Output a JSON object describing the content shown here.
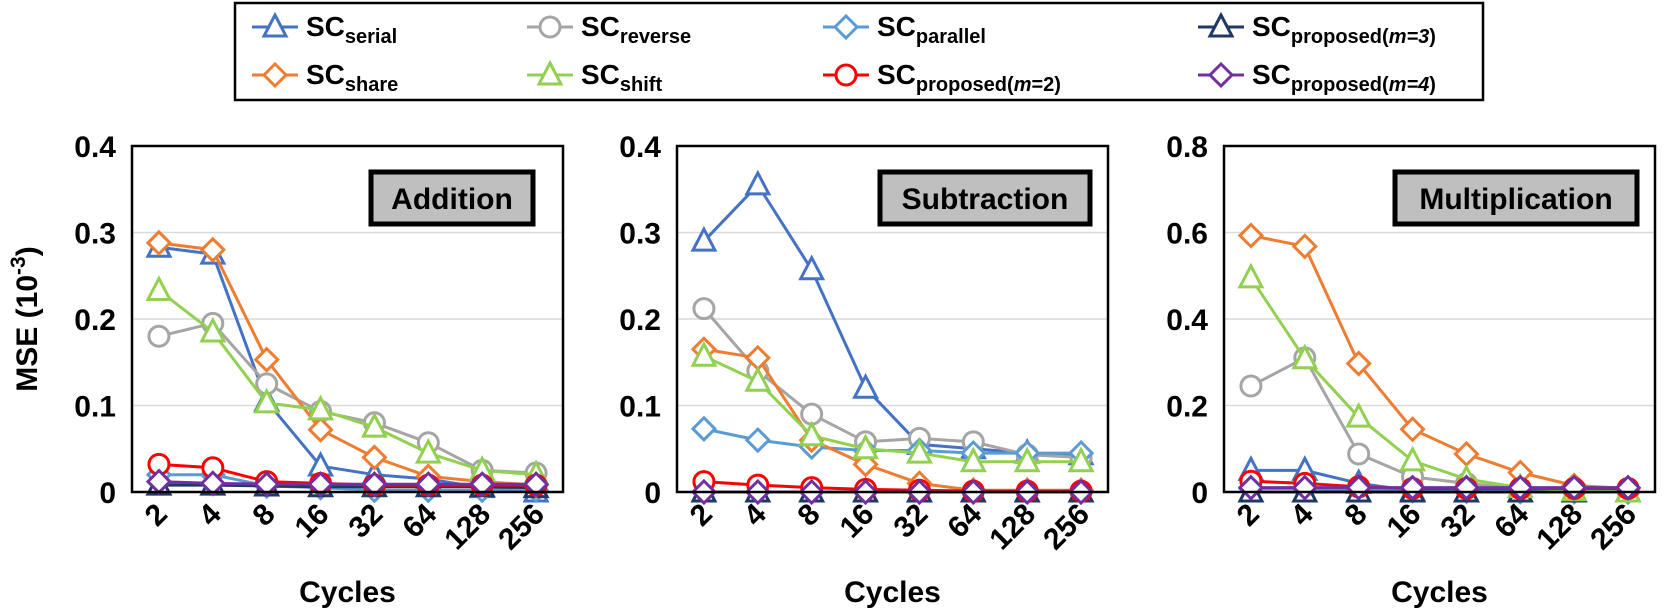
{
  "legend": [
    {
      "base": "SC",
      "sub": [
        {
          "t": "serial",
          "i": false
        }
      ],
      "color": "#4472C4",
      "marker": "triangle"
    },
    {
      "base": "SC",
      "sub": [
        {
          "t": "reverse",
          "i": false
        }
      ],
      "color": "#A5A5A5",
      "marker": "circle"
    },
    {
      "base": "SC",
      "sub": [
        {
          "t": "parallel",
          "i": false
        }
      ],
      "color": "#5B9BD5",
      "marker": "diamond"
    },
    {
      "base": "SC",
      "sub": [
        {
          "t": "proposed(",
          "i": false
        },
        {
          "t": "m=3",
          "i": true
        },
        {
          "t": ")",
          "i": false
        }
      ],
      "color": "#1F3864",
      "marker": "triangle"
    },
    {
      "base": "SC",
      "sub": [
        {
          "t": "share",
          "i": false
        }
      ],
      "color": "#ED7D31",
      "marker": "diamond"
    },
    {
      "base": "SC",
      "sub": [
        {
          "t": "shift",
          "i": false
        }
      ],
      "color": "#92D050",
      "marker": "triangle"
    },
    {
      "base": "SC",
      "sub": [
        {
          "t": "proposed(",
          "i": false
        },
        {
          "t": "m",
          "i": true
        },
        {
          "t": "=2)",
          "i": false
        }
      ],
      "color": "#FF0000",
      "marker": "circle"
    },
    {
      "base": "SC",
      "sub": [
        {
          "t": "proposed(",
          "i": false
        },
        {
          "t": "m=4",
          "i": true
        },
        {
          "t": ")",
          "i": false
        }
      ],
      "color": "#7030A0",
      "marker": "diamond"
    }
  ],
  "chart_data": [
    {
      "type": "line",
      "title": "Addition",
      "xlabel": "Cycles",
      "ylabel": "MSE (10",
      "ylabel_sup": "-3",
      "ylabel_close": ")",
      "categories": [
        "2",
        "4",
        "8",
        "16",
        "32",
        "64",
        "128",
        "256"
      ],
      "ylim": [
        0,
        0.4
      ],
      "yticks": [
        "0",
        "0.1",
        "0.2",
        "0.3",
        "0.4"
      ],
      "grid": true,
      "series": [
        {
          "values": [
            0.283,
            0.275,
            0.105,
            0.03,
            0.02,
            0.015,
            0.005,
            0.0
          ]
        },
        {
          "values": [
            0.18,
            0.195,
            0.125,
            0.093,
            0.08,
            0.057,
            0.025,
            0.022
          ]
        },
        {
          "values": [
            0.02,
            0.02,
            0.007,
            0.005,
            0.002,
            0.002,
            0.002,
            0.002
          ]
        },
        {
          "values": [
            0.008,
            0.008,
            0.007,
            0.006,
            0.006,
            0.006,
            0.006,
            0.005
          ]
        },
        {
          "values": [
            0.288,
            0.28,
            0.153,
            0.072,
            0.04,
            0.018,
            0.012,
            0.008
          ]
        },
        {
          "values": [
            0.233,
            0.185,
            0.103,
            0.095,
            0.075,
            0.045,
            0.025,
            0.02
          ]
        },
        {
          "values": [
            0.032,
            0.028,
            0.012,
            0.01,
            0.008,
            0.008,
            0.008,
            0.008
          ]
        },
        {
          "values": [
            0.012,
            0.01,
            0.009,
            0.009,
            0.009,
            0.009,
            0.009,
            0.009
          ]
        }
      ]
    },
    {
      "type": "line",
      "title": "Subtraction",
      "xlabel": "Cycles",
      "categories": [
        "2",
        "4",
        "8",
        "16",
        "32",
        "64",
        "128",
        "256"
      ],
      "ylim": [
        0,
        0.4
      ],
      "yticks": [
        "0",
        "0.1",
        "0.2",
        "0.3",
        "0.4"
      ],
      "grid": true,
      "series": [
        {
          "values": [
            0.29,
            0.355,
            0.257,
            0.12,
            0.055,
            0.05,
            0.045,
            0.043
          ]
        },
        {
          "values": [
            0.212,
            0.14,
            0.09,
            0.058,
            0.062,
            0.058,
            0.043,
            0.04
          ]
        },
        {
          "values": [
            0.073,
            0.06,
            0.052,
            0.048,
            0.048,
            0.045,
            0.045,
            0.045
          ]
        },
        {
          "values": [
            0.0,
            0.0,
            0.0,
            0.0,
            0.0,
            0.0,
            0.0,
            0.0
          ]
        },
        {
          "values": [
            0.165,
            0.155,
            0.06,
            0.032,
            0.01,
            0.002,
            0.002,
            0.002
          ]
        },
        {
          "values": [
            0.157,
            0.128,
            0.065,
            0.05,
            0.045,
            0.035,
            0.035,
            0.035
          ]
        },
        {
          "values": [
            0.012,
            0.008,
            0.005,
            0.003,
            0.002,
            0.001,
            0.001,
            0.001
          ]
        },
        {
          "values": [
            0.0,
            0.0,
            0.0,
            0.0,
            0.0,
            0.0,
            0.0,
            0.0
          ]
        }
      ]
    },
    {
      "type": "line",
      "title": "Multiplication",
      "xlabel": "Cycles",
      "categories": [
        "2",
        "4",
        "8",
        "16",
        "32",
        "64",
        "128",
        "256"
      ],
      "ylim": [
        0,
        0.8
      ],
      "yticks": [
        "0",
        "0.2",
        "0.4",
        "0.6",
        "0.8"
      ],
      "grid": true,
      "series": [
        {
          "values": [
            0.05,
            0.05,
            0.02,
            0.003,
            0.0,
            0.0,
            0.0,
            0.0
          ]
        },
        {
          "values": [
            0.245,
            0.31,
            0.088,
            0.035,
            0.02,
            0.008,
            0.003,
            0.002
          ]
        },
        {
          "values": [
            0.008,
            0.008,
            0.005,
            0.003,
            0.002,
            0.001,
            0.001,
            0.0
          ]
        },
        {
          "values": [
            0.0,
            0.0,
            0.0,
            0.0,
            0.0,
            0.0,
            0.0,
            0.0
          ]
        },
        {
          "values": [
            0.593,
            0.568,
            0.297,
            0.145,
            0.088,
            0.045,
            0.015,
            0.008
          ]
        },
        {
          "values": [
            0.495,
            0.308,
            0.173,
            0.072,
            0.03,
            0.01,
            0.003,
            0.0
          ]
        },
        {
          "values": [
            0.025,
            0.02,
            0.012,
            0.008,
            0.008,
            0.008,
            0.008,
            0.008
          ]
        },
        {
          "values": [
            0.01,
            0.01,
            0.01,
            0.01,
            0.01,
            0.01,
            0.01,
            0.01
          ]
        }
      ]
    }
  ]
}
